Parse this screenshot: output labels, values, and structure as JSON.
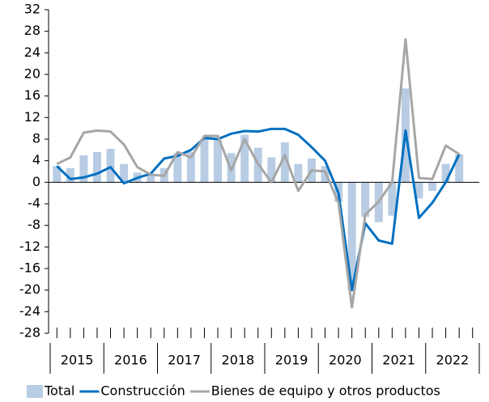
{
  "chart_data": {
    "type": "bar-line",
    "categories": [
      null,
      null,
      null,
      null,
      null,
      null,
      null,
      null,
      null,
      null,
      null,
      null,
      null,
      null,
      null,
      null,
      null,
      null,
      null,
      null,
      null,
      null,
      null,
      null,
      null,
      null,
      null,
      null,
      null,
      null,
      null,
      null
    ],
    "years": [
      "2015",
      "2016",
      "2017",
      "2018",
      "2019",
      "2020",
      "2021",
      "2022"
    ],
    "series": [
      {
        "name": "Total",
        "type": "bar",
        "color": "#b8cce4",
        "values": [
          3.0,
          2.6,
          5.0,
          5.6,
          6.2,
          3.4,
          1.8,
          1.6,
          2.6,
          5.4,
          5.6,
          8.0,
          7.8,
          5.4,
          8.8,
          6.4,
          4.6,
          7.4,
          3.4,
          4.4,
          3.0,
          -3.6,
          -20.0,
          -6.4,
          -7.4,
          -6.2,
          17.4,
          -3.0,
          -1.6,
          3.4,
          5.2,
          null
        ]
      },
      {
        "name": "Construcción",
        "type": "line",
        "color": "#0070c0",
        "values": [
          3.0,
          0.6,
          0.9,
          1.6,
          2.8,
          -0.2,
          0.8,
          1.6,
          4.4,
          4.9,
          6.0,
          8.2,
          8.0,
          9.0,
          9.5,
          9.4,
          9.9,
          9.9,
          8.8,
          6.5,
          4.0,
          -2.0,
          -20.0,
          -7.6,
          -10.8,
          -11.4,
          9.6,
          -6.6,
          -3.8,
          0.0,
          5.2,
          null
        ]
      },
      {
        "name": "Bienes de equipo y otros productos",
        "type": "line",
        "color": "#a6a6a6",
        "values": [
          3.4,
          4.6,
          9.2,
          9.6,
          9.4,
          7.0,
          2.8,
          1.4,
          1.2,
          5.6,
          4.6,
          8.6,
          8.6,
          2.2,
          8.0,
          3.4,
          0.0,
          5.0,
          -1.6,
          2.2,
          2.0,
          -3.8,
          -23.2,
          -6.0,
          -3.6,
          0.0,
          26.5,
          0.8,
          0.6,
          6.8,
          5.2,
          null
        ]
      }
    ],
    "ylim": [
      -28,
      32
    ],
    "yticks": [
      -28,
      -24,
      -20,
      -16,
      -12,
      -8,
      -4,
      0,
      4,
      8,
      12,
      16,
      20,
      24,
      28,
      32
    ],
    "legend": "bottom"
  }
}
